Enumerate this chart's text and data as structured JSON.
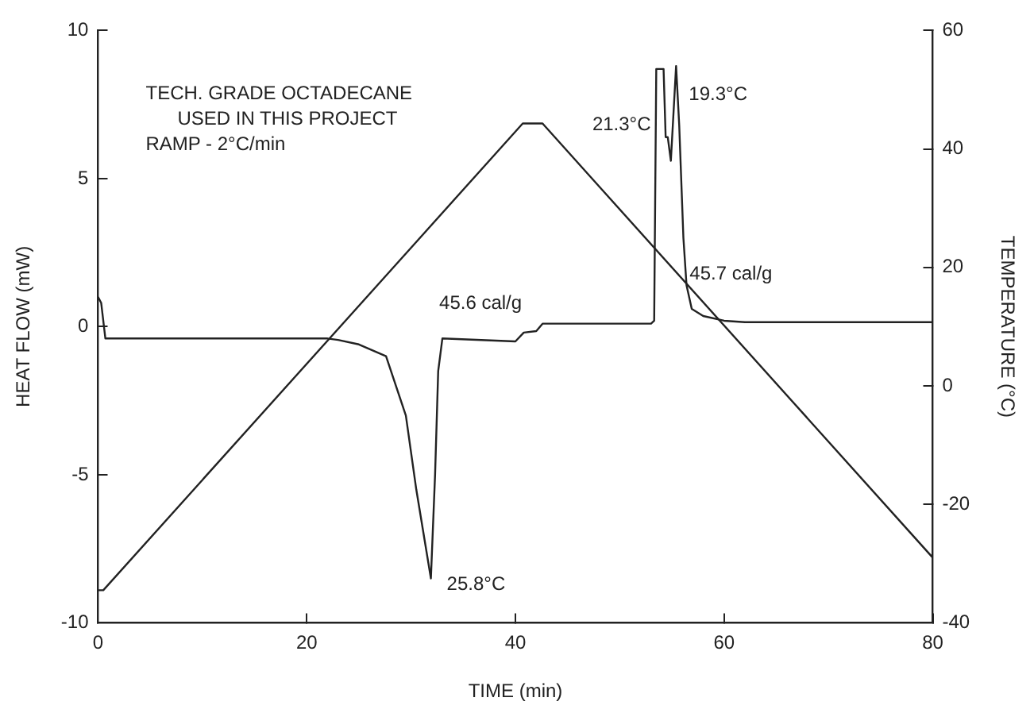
{
  "chart_data": {
    "type": "line",
    "xlabel": "TIME (min)",
    "ylabel": "HEAT FLOW (mW)",
    "y2label": "TEMPERATURE (°C)",
    "xlim": [
      0,
      80
    ],
    "xticks": [
      0,
      20,
      40,
      60,
      80
    ],
    "ylim": [
      -10,
      10
    ],
    "yticks": [
      -10,
      -5,
      0,
      5,
      10
    ],
    "y2lim": [
      -40,
      60
    ],
    "y2ticks": [
      -40,
      -20,
      0,
      20,
      40,
      60
    ],
    "grid": false,
    "legend": false,
    "marker": "none",
    "line_style": "solid",
    "series": [
      {
        "color": "#222222",
        "x": [
          0,
          0.3,
          0.7,
          22,
          23,
          25,
          27.6,
          29.5,
          30.5,
          31.9,
          32.3,
          32.6,
          33,
          40,
          40.8,
          42,
          42.6,
          53,
          53.3,
          53.5,
          54.2,
          54.4,
          54.6,
          54.9,
          55.4,
          55.7,
          56.1,
          56.4,
          56.9,
          58,
          60,
          62,
          80
        ],
        "values": [
          1.0,
          0.8,
          -0.4,
          -0.4,
          -0.45,
          -0.6,
          -1.0,
          -3.0,
          -5.5,
          -8.5,
          -5.0,
          -1.5,
          -0.4,
          -0.5,
          -0.2,
          -0.15,
          0.1,
          0.1,
          0.2,
          8.7,
          8.7,
          6.4,
          6.4,
          5.6,
          8.8,
          6.8,
          3.0,
          1.4,
          0.6,
          0.36,
          0.2,
          0.15,
          0.15
        ]
      },
      {
        "color": "#222222",
        "axis": "y2",
        "x": [
          0,
          0.5,
          40.7,
          42.6,
          80
        ],
        "values": [
          -34.5,
          -34.5,
          44.3,
          44.3,
          -29
        ]
      }
    ],
    "annotations": [
      "TECH. GRADE OCTADECANE",
      "USED IN THIS PROJECT",
      "RAMP - 2°C/min",
      {
        "text": "21.3°C",
        "x": 54.2,
        "y": 8.7
      },
      {
        "text": "19.3°C",
        "x": 55.4,
        "y": 8.8
      },
      {
        "text": "45.6 cal/g",
        "x": 33,
        "y": -0.4
      },
      {
        "text": "45.7 cal/g",
        "x": 57,
        "y": 0.6
      },
      {
        "text": "25.8°C",
        "x": 31.9,
        "y": -8.5
      }
    ]
  }
}
